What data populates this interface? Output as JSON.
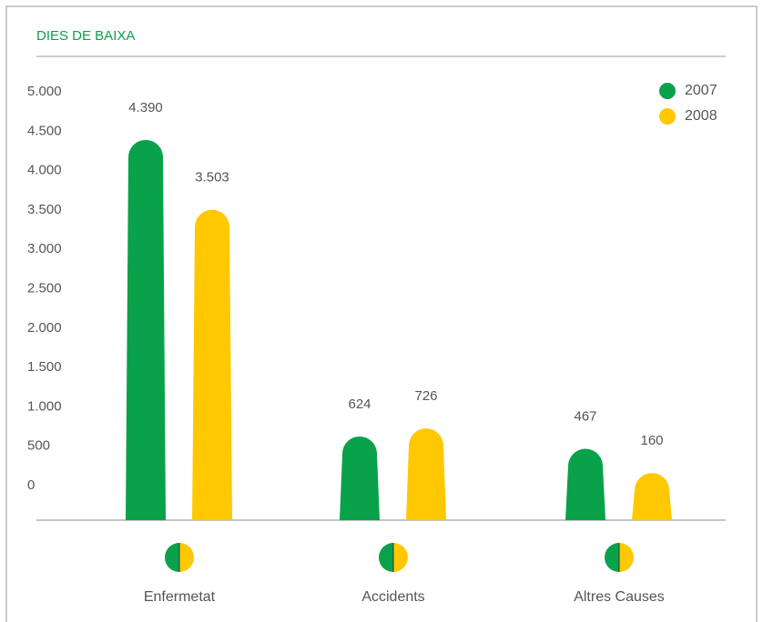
{
  "chart_data": {
    "type": "bar",
    "title": "DIES DE BAIXA",
    "categories": [
      "Enfermetat",
      "Accidents",
      "Altres Causes"
    ],
    "series": [
      {
        "name": "2007",
        "color": "#0aa14b",
        "values": [
          4390,
          624,
          467
        ],
        "value_labels": [
          "4.390",
          "624",
          "467"
        ]
      },
      {
        "name": "2008",
        "color": "#ffc800",
        "values": [
          3503,
          726,
          160
        ],
        "value_labels": [
          "3.503",
          "726",
          "160"
        ]
      }
    ],
    "ylim": [
      0,
      5000
    ],
    "yticks": [
      0,
      {
        "value": 500,
        "label": "500"
      },
      {
        "value": 1000,
        "label": "1.000"
      },
      {
        "value": 1500,
        "label": "1.500"
      },
      {
        "value": 2000,
        "label": "2.000"
      },
      {
        "value": 2500,
        "label": "2.500"
      },
      {
        "value": 3000,
        "label": "3.000"
      },
      {
        "value": 3500,
        "label": "3.500"
      },
      {
        "value": 4000,
        "label": "4.000"
      },
      {
        "value": 4500,
        "label": "4.500"
      },
      {
        "value": 5000,
        "label": "5.000"
      }
    ],
    "legend": "top-right"
  }
}
